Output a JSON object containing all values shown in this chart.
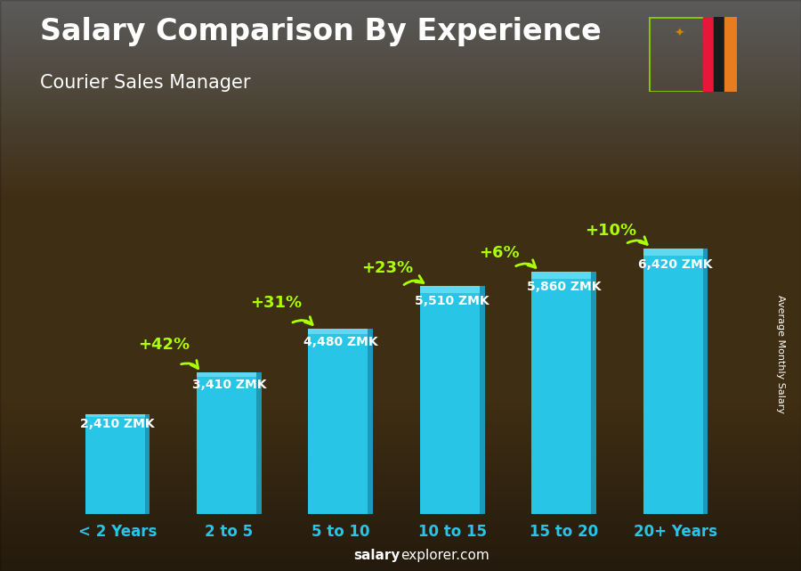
{
  "title": "Salary Comparison By Experience",
  "subtitle": "Courier Sales Manager",
  "categories": [
    "< 2 Years",
    "2 to 5",
    "5 to 10",
    "10 to 15",
    "15 to 20",
    "20+ Years"
  ],
  "values": [
    2410,
    3410,
    4480,
    5510,
    5860,
    6420
  ],
  "bar_color": "#29c5e6",
  "bar_color_light": "#5fd8f0",
  "bar_color_dark": "#1a9ab8",
  "pct_labels": [
    "+42%",
    "+31%",
    "+23%",
    "+6%",
    "+10%"
  ],
  "pct_color": "#aaff00",
  "value_labels": [
    "2,410 ZMK",
    "3,410 ZMK",
    "4,480 ZMK",
    "5,510 ZMK",
    "5,860 ZMK",
    "6,420 ZMK"
  ],
  "ylabel": "Average Monthly Salary",
  "footer_normal": "explorer.com",
  "footer_bold": "salary",
  "bg_color": "#5a4020",
  "title_color": "#ffffff",
  "subtitle_color": "#ffffff",
  "label_color": "#ffffff",
  "tick_color": "#29c5e6",
  "arrow_color": "#aaff00",
  "flag_green": "#6ab620",
  "flag_red": "#e8173a",
  "flag_black": "#1a1a1a",
  "flag_orange": "#e87d1e",
  "ylim_max": 8000,
  "pct_fontsize": 13,
  "val_fontsize": 10,
  "title_fontsize": 24,
  "subtitle_fontsize": 15,
  "xtick_fontsize": 12,
  "arrow_params": [
    [
      0.42,
      3900,
      0.55,
      3600,
      0.75,
      3410
    ],
    [
      1.42,
      4900,
      1.55,
      4600,
      1.78,
      4480
    ],
    [
      2.42,
      5750,
      2.55,
      5500,
      2.78,
      5510
    ],
    [
      3.42,
      6100,
      3.55,
      5960,
      3.78,
      5860
    ],
    [
      4.42,
      6650,
      4.55,
      6520,
      4.78,
      6420
    ]
  ]
}
